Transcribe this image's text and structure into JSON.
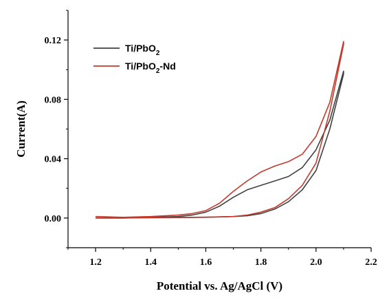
{
  "chart_data": {
    "type": "line",
    "xlabel": "Potential vs. Ag/AgCl (V)",
    "ylabel": "Current(A)",
    "xlim": [
      1.1,
      2.2
    ],
    "ylim": [
      -0.02,
      0.14
    ],
    "x_ticks": [
      1.2,
      1.4,
      1.6,
      1.8,
      2.0,
      2.2
    ],
    "x_tick_labels": [
      "1.2",
      "1.4",
      "1.6",
      "1.8",
      "2.0",
      "2.2"
    ],
    "y_ticks": [
      0.0,
      0.04,
      0.08,
      0.12
    ],
    "y_tick_labels": [
      "0.00",
      "0.04",
      "0.08",
      "0.12"
    ],
    "grid": false,
    "legend_position": "top-left",
    "series": [
      {
        "name": "Ti/PbO2",
        "legend_main": "Ti/PbO",
        "legend_sub": "2",
        "legend_tail": "",
        "color": "#404040",
        "x": [
          1.2,
          1.3,
          1.4,
          1.5,
          1.55,
          1.6,
          1.65,
          1.7,
          1.75,
          1.8,
          1.85,
          1.9,
          1.95,
          2.0,
          2.05,
          2.1,
          2.1,
          2.05,
          2.0,
          1.95,
          1.9,
          1.85,
          1.8,
          1.75,
          1.7,
          1.6,
          1.5,
          1.4,
          1.3,
          1.2
        ],
        "y": [
          0.0,
          0.0,
          0.0005,
          0.001,
          0.002,
          0.004,
          0.008,
          0.014,
          0.019,
          0.022,
          0.025,
          0.028,
          0.034,
          0.046,
          0.066,
          0.099,
          0.097,
          0.06,
          0.032,
          0.019,
          0.011,
          0.006,
          0.003,
          0.0015,
          0.001,
          0.0005,
          0.0003,
          0.0002,
          0.0001,
          0.0
        ]
      },
      {
        "name": "Ti/PbO2-Nd",
        "legend_main": "Ti/PbO",
        "legend_sub": "2",
        "legend_tail": "-Nd",
        "color": "#c0392b",
        "x": [
          1.2,
          1.3,
          1.4,
          1.5,
          1.55,
          1.6,
          1.65,
          1.7,
          1.75,
          1.8,
          1.85,
          1.9,
          1.95,
          2.0,
          2.05,
          2.1,
          2.1,
          2.05,
          2.0,
          1.95,
          1.9,
          1.85,
          1.8,
          1.75,
          1.7,
          1.6,
          1.5,
          1.4,
          1.3,
          1.2
        ],
        "y": [
          0.001,
          0.0005,
          0.001,
          0.002,
          0.003,
          0.005,
          0.01,
          0.018,
          0.025,
          0.031,
          0.035,
          0.038,
          0.043,
          0.055,
          0.078,
          0.119,
          0.117,
          0.072,
          0.037,
          0.022,
          0.013,
          0.007,
          0.004,
          0.002,
          0.001,
          0.0006,
          0.0004,
          0.0003,
          0.0002,
          0.0001
        ]
      }
    ]
  }
}
